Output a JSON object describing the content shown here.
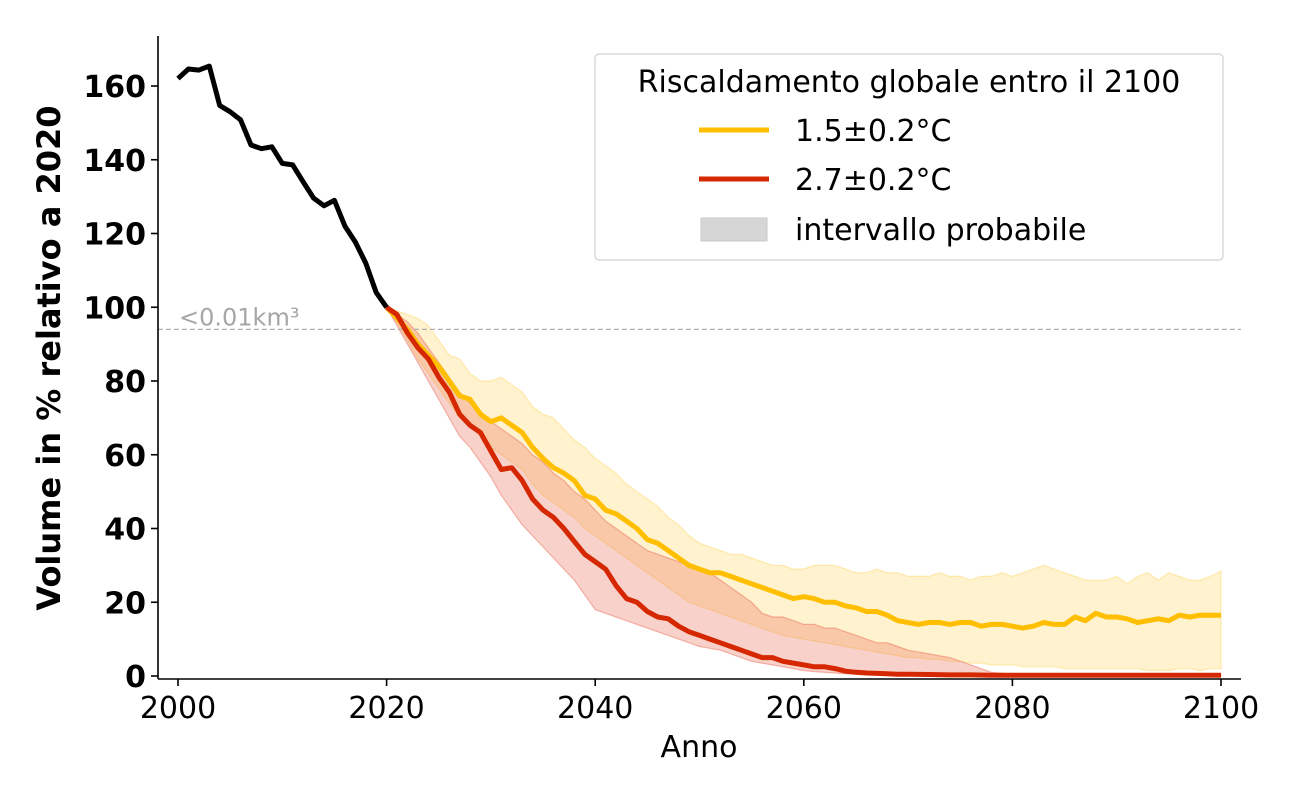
{
  "chart_data": {
    "type": "line",
    "title": "",
    "xlabel": "Anno",
    "ylabel": "Volume in % relativo a 2020",
    "xlim": [
      1998,
      2102
    ],
    "ylim": [
      0,
      174
    ],
    "xticks": [
      2000,
      2020,
      2040,
      2060,
      2080,
      2100
    ],
    "yticks": [
      0,
      20,
      40,
      60,
      80,
      100,
      120,
      140,
      160
    ],
    "grid": false,
    "legend": {
      "title": "Riscaldamento globale entro il 2100",
      "placement": "top-right",
      "entries": [
        {
          "label": "1.5±0.2°C",
          "type": "line",
          "color": "#FFBF00"
        },
        {
          "label": "2.7±0.2°C",
          "type": "line",
          "color": "#D62800"
        },
        {
          "label": "intervallo probabile",
          "type": "patch",
          "color": "#D6D6D6"
        }
      ]
    },
    "annotations": [
      {
        "text": "<0.01km³",
        "type": "hline",
        "y": 94,
        "color": "#A6A6A6",
        "style": "dashed"
      }
    ],
    "series": [
      {
        "name": "observed",
        "color": "#000000",
        "x": [
          2000,
          2001,
          2002,
          2003,
          2004,
          2005,
          2006,
          2007,
          2008,
          2009,
          2010,
          2011,
          2012,
          2013,
          2014,
          2015,
          2016,
          2017,
          2018,
          2019,
          2020
        ],
        "y": [
          162,
          164.6,
          164.3,
          165.4,
          154.7,
          153,
          150.8,
          144,
          143,
          143.5,
          139,
          138.6,
          134,
          129.6,
          127.5,
          129,
          122,
          117.7,
          112,
          104,
          100
        ]
      },
      {
        "name": "1.5±0.2°C",
        "color": "#FFBF00",
        "band_color": "#FFEFC8",
        "x": [
          2020,
          2021,
          2022,
          2023,
          2024,
          2025,
          2026,
          2027,
          2028,
          2029,
          2030,
          2031,
          2032,
          2033,
          2034,
          2035,
          2036,
          2037,
          2038,
          2039,
          2040,
          2041,
          2042,
          2043,
          2044,
          2045,
          2046,
          2047,
          2048,
          2049,
          2050,
          2051,
          2052,
          2053,
          2054,
          2055,
          2056,
          2057,
          2058,
          2059,
          2060,
          2061,
          2062,
          2063,
          2064,
          2065,
          2066,
          2067,
          2068,
          2069,
          2070,
          2071,
          2072,
          2073,
          2074,
          2075,
          2076,
          2077,
          2078,
          2079,
          2080,
          2081,
          2082,
          2083,
          2084,
          2085,
          2086,
          2087,
          2088,
          2089,
          2090,
          2091,
          2092,
          2093,
          2094,
          2095,
          2096,
          2097,
          2098,
          2099,
          2100
        ],
        "y": [
          100,
          97,
          94,
          90,
          87,
          84,
          80,
          76,
          75,
          71,
          69,
          70,
          68,
          66,
          62,
          59,
          56.5,
          55,
          53,
          49,
          48,
          45,
          44,
          42,
          40,
          37,
          36,
          34,
          32,
          30,
          29,
          28,
          28,
          27,
          26,
          25,
          24,
          23,
          22,
          21,
          21.5,
          21,
          20,
          20,
          19,
          18.5,
          17.5,
          17.5,
          16.5,
          15,
          14.5,
          14,
          14.5,
          14.5,
          14,
          14.5,
          14.5,
          13.5,
          14,
          14,
          13.5,
          13,
          13.5,
          14.5,
          14,
          14,
          16,
          15,
          17,
          16,
          16,
          15.5,
          14.5,
          15,
          15.5,
          15,
          16.5,
          16,
          16.5,
          16.5,
          16.5
        ],
        "upper": [
          100,
          99,
          98,
          97,
          95,
          91,
          87,
          86,
          82,
          80,
          80,
          81,
          79,
          77,
          73,
          71,
          70,
          67,
          64,
          62,
          59,
          57,
          55,
          52,
          50,
          48,
          46,
          43,
          41,
          38,
          36,
          35,
          34,
          33,
          33,
          32,
          31,
          30,
          30,
          29,
          29,
          30,
          30,
          30,
          29,
          28,
          28,
          29,
          28,
          28,
          27,
          27,
          27,
          28,
          27,
          27,
          26,
          27,
          27,
          28,
          27,
          28,
          29,
          30,
          29,
          28,
          27,
          26,
          26,
          26,
          27,
          25,
          27,
          28,
          26,
          28,
          27,
          26,
          26,
          27,
          28.5
        ],
        "lower": [
          100,
          96,
          91,
          86,
          82,
          78,
          74,
          70,
          68,
          65,
          62,
          60,
          58,
          56,
          52,
          49,
          47,
          45,
          43,
          40,
          38,
          36,
          34,
          32,
          30,
          28,
          26,
          24,
          22,
          20,
          19,
          18,
          17,
          16,
          15,
          14,
          13,
          12,
          11,
          10.5,
          10,
          9.5,
          9,
          8.5,
          8,
          7.5,
          7,
          6.5,
          6,
          5.5,
          5,
          5,
          4.5,
          4.5,
          4,
          4,
          3.5,
          3.5,
          3,
          3,
          3,
          2.5,
          2.5,
          2.5,
          2.5,
          2,
          2,
          2,
          2,
          2,
          2,
          2,
          2,
          1.5,
          1.5,
          1.5,
          2,
          2,
          1.5,
          2,
          2
        ]
      },
      {
        "name": "2.7±0.2°C",
        "color": "#D62800",
        "band_color": "#F5C8C2",
        "x": [
          2020,
          2021,
          2022,
          2023,
          2024,
          2025,
          2026,
          2027,
          2028,
          2029,
          2030,
          2031,
          2032,
          2033,
          2034,
          2035,
          2036,
          2037,
          2038,
          2039,
          2040,
          2041,
          2042,
          2043,
          2044,
          2045,
          2046,
          2047,
          2048,
          2049,
          2050,
          2051,
          2052,
          2053,
          2054,
          2055,
          2056,
          2057,
          2058,
          2059,
          2060,
          2061,
          2062,
          2063,
          2064,
          2065,
          2066,
          2067,
          2068,
          2069,
          2070,
          2072,
          2074,
          2076,
          2078,
          2080,
          2085,
          2090,
          2095,
          2100
        ],
        "y": [
          100,
          98,
          93,
          89,
          86,
          81,
          77,
          71,
          68,
          66,
          61,
          56,
          56.5,
          53,
          48,
          45,
          43,
          40,
          36.5,
          33,
          31,
          29,
          24.5,
          21,
          20,
          17.5,
          16,
          15.5,
          13.5,
          12,
          11,
          10,
          9,
          8,
          7,
          6,
          5,
          5,
          4,
          3.5,
          3,
          2.5,
          2.5,
          2,
          1.3,
          1,
          0.8,
          0.7,
          0.6,
          0.5,
          0.5,
          0.4,
          0.3,
          0.3,
          0.2,
          0.2,
          0.2,
          0.2,
          0.2,
          0.2
        ],
        "upper": [
          100,
          98,
          96,
          93,
          89,
          85,
          81,
          77,
          74,
          71,
          69,
          67,
          65,
          63,
          60,
          58,
          55,
          53,
          50,
          48,
          45,
          42,
          40,
          38,
          36,
          34,
          33,
          32,
          31,
          30,
          29,
          28,
          26,
          24,
          22,
          20,
          17,
          16,
          16,
          15,
          14,
          14,
          13,
          13,
          12,
          11,
          10,
          9,
          9,
          8,
          7,
          6,
          5,
          3,
          1,
          0.5,
          0.4,
          0.3,
          0.3,
          0.3
        ],
        "lower": [
          100,
          95,
          90,
          85,
          80,
          75,
          70,
          65,
          62,
          58,
          54,
          49,
          45,
          41,
          38,
          35,
          32,
          29,
          26,
          22,
          18,
          17,
          16,
          15,
          14,
          13,
          12,
          11,
          10,
          9,
          8,
          7.5,
          7,
          6,
          5,
          4,
          3.5,
          3,
          2.5,
          2,
          1.5,
          1.2,
          1,
          0.8,
          0.6,
          0.5,
          0.4,
          0.3,
          0.3,
          0.2,
          0.2,
          0.2,
          0.1,
          0.1,
          0.1,
          0.1,
          0.1,
          0.1,
          0.1,
          0.1
        ]
      }
    ]
  }
}
